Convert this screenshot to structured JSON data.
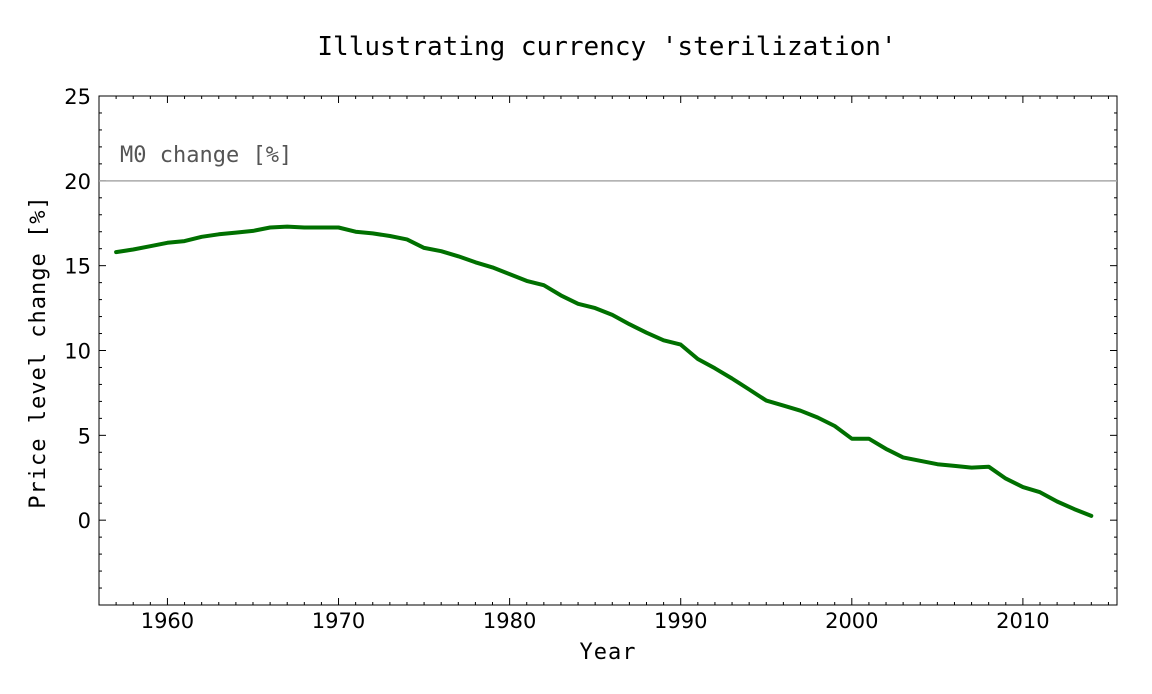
{
  "chart_data": {
    "type": "line",
    "title": "Illustrating currency 'sterilization'",
    "xlabel": "Year",
    "ylabel": "Price level change [%]",
    "xlim": [
      1956,
      2015.5
    ],
    "ylim": [
      -5,
      25
    ],
    "xticks": [
      1960,
      1970,
      1980,
      1990,
      2000,
      2010
    ],
    "yticks": [
      0,
      5,
      10,
      15,
      20,
      25
    ],
    "grid": false,
    "colors": {
      "series": "#007000",
      "reference": "#aaaaaa",
      "frame": "#000000"
    },
    "reference_line": {
      "y": 20,
      "label": "M0 change [%]"
    },
    "series": [
      {
        "x": [
          1957,
          1958,
          1959,
          1960,
          1961,
          1962,
          1963,
          1964,
          1965,
          1966,
          1967,
          1968,
          1969,
          1970,
          1971,
          1972,
          1973,
          1974,
          1975,
          1976,
          1977,
          1978,
          1979,
          1980,
          1981,
          1982,
          1983,
          1984,
          1985,
          1986,
          1987,
          1988,
          1989,
          1990,
          1991,
          1992,
          1993,
          1994,
          1995,
          1996,
          1997,
          1998,
          1999,
          2000,
          2001,
          2002,
          2003,
          2004,
          2005,
          2006,
          2007,
          2008,
          2009,
          2010,
          2011,
          2012,
          2013,
          2014
        ],
        "values": [
          15.8,
          15.95,
          16.15,
          16.35,
          16.45,
          16.7,
          16.85,
          16.95,
          17.05,
          17.25,
          17.3,
          17.25,
          17.25,
          17.25,
          17.0,
          16.9,
          16.75,
          16.55,
          16.05,
          15.85,
          15.55,
          15.2,
          14.9,
          14.5,
          14.1,
          13.85,
          13.25,
          12.75,
          12.5,
          12.1,
          11.55,
          11.05,
          10.6,
          10.35,
          9.5,
          8.95,
          8.35,
          7.7,
          7.05,
          6.75,
          6.45,
          6.05,
          5.55,
          4.8,
          4.8,
          4.2,
          3.7,
          3.5,
          3.3,
          3.2,
          3.1,
          3.15,
          2.45,
          1.95,
          1.65,
          1.1,
          0.65,
          0.25
        ]
      }
    ]
  }
}
